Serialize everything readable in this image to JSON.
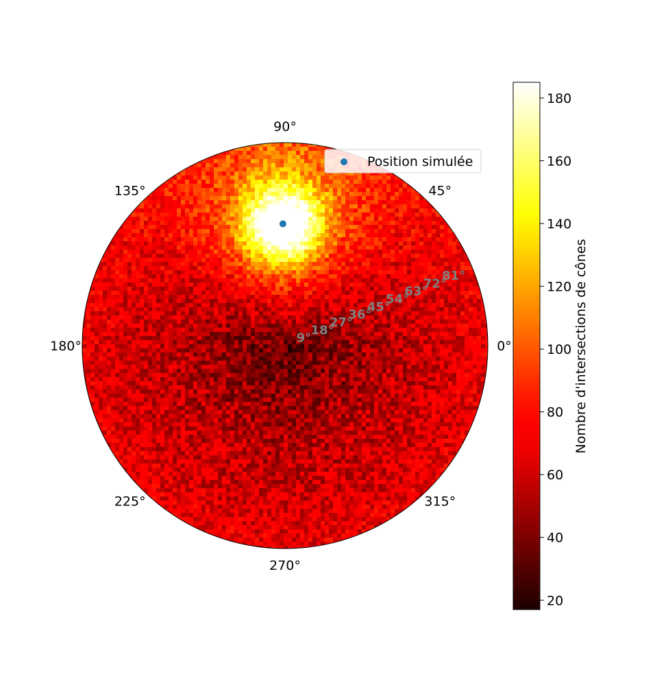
{
  "chart_data": {
    "type": "heatmap",
    "projection": "polar",
    "angular_tick_labels": [
      "0°",
      "45°",
      "90°",
      "135°",
      "180°",
      "225°",
      "270°",
      "315°"
    ],
    "angular_ticks_deg": [
      0,
      45,
      90,
      135,
      180,
      225,
      270,
      315
    ],
    "radial_tick_labels": [
      "9°",
      "18°",
      "27°",
      "36°",
      "45°",
      "54°",
      "63°",
      "72°",
      "81°"
    ],
    "radial_ticks": [
      9,
      18,
      27,
      36,
      45,
      54,
      63,
      72,
      81
    ],
    "radial_range": [
      0,
      90
    ],
    "radial_label_angle_deg": 22.5,
    "grid": false,
    "colormap": "hot",
    "colorbar": {
      "label": "Nombre d'intersections de cônes",
      "range": [
        17,
        185
      ],
      "tick_labels": [
        "20",
        "40",
        "60",
        "80",
        "100",
        "120",
        "140",
        "160",
        "180"
      ],
      "ticks": [
        20,
        40,
        60,
        80,
        100,
        120,
        140,
        160,
        180
      ]
    },
    "hotspot": {
      "theta_deg": 91,
      "r": 54,
      "peak_count": 185
    },
    "background_level": {
      "center": 30,
      "edge": 68
    },
    "series": [
      {
        "name": "Position simulée",
        "type": "scatter",
        "theta_deg": 91,
        "r": 54,
        "color": "#1f77b4"
      }
    ],
    "legend": {
      "position": "top-right",
      "entries": [
        "Position simulée"
      ]
    }
  }
}
